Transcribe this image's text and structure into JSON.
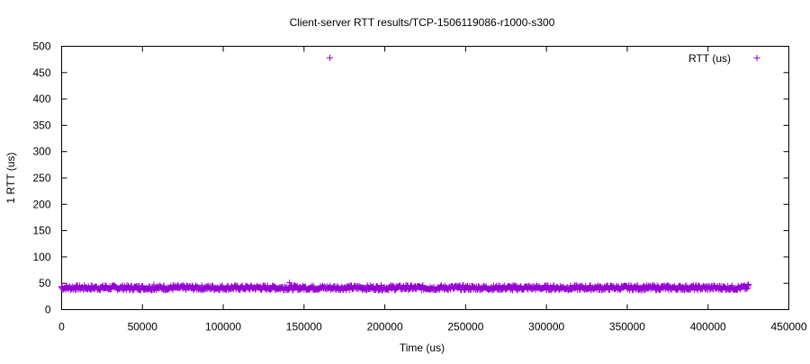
{
  "chart_data": {
    "type": "scatter",
    "title": "Client-server RTT results/TCP-1506119086-r1000-s300",
    "xlabel": "Time (us)",
    "ylabel": "1 RTT (us)",
    "xlim": [
      0,
      450000
    ],
    "ylim": [
      0,
      500
    ],
    "x_ticks": [
      0,
      50000,
      100000,
      150000,
      200000,
      250000,
      300000,
      350000,
      400000,
      450000
    ],
    "y_ticks": [
      0,
      50,
      100,
      150,
      200,
      250,
      300,
      350,
      400,
      450,
      500
    ],
    "grid": false,
    "legend_position": "top-right",
    "marker": "plus",
    "color": "#9400d3",
    "series": [
      {
        "name": "RTT (us)",
        "x_range": [
          0,
          425000
        ],
        "typical_y_range": [
          37,
          46
        ],
        "points": [
          [
            0,
            44
          ],
          [
            3000,
            42
          ],
          [
            6000,
            40
          ],
          [
            9000,
            45
          ],
          [
            12000,
            41
          ],
          [
            15000,
            43
          ],
          [
            18000,
            39
          ],
          [
            21000,
            44
          ],
          [
            24000,
            42
          ],
          [
            27000,
            46
          ],
          [
            30000,
            40
          ],
          [
            33000,
            43
          ],
          [
            36000,
            41
          ],
          [
            39000,
            44
          ],
          [
            42000,
            38
          ],
          [
            45000,
            42
          ],
          [
            48000,
            45
          ],
          [
            51000,
            40
          ],
          [
            54000,
            43
          ],
          [
            57000,
            47
          ],
          [
            60000,
            41
          ],
          [
            63000,
            44
          ],
          [
            66000,
            39
          ],
          [
            69000,
            46
          ],
          [
            72000,
            42
          ],
          [
            75000,
            40
          ],
          [
            78000,
            44
          ],
          [
            81000,
            41
          ],
          [
            84000,
            43
          ],
          [
            87000,
            39
          ],
          [
            90000,
            42
          ],
          [
            93000,
            45
          ],
          [
            96000,
            40
          ],
          [
            99000,
            43
          ],
          [
            102000,
            41
          ],
          [
            105000,
            44
          ],
          [
            108000,
            39
          ],
          [
            111000,
            42
          ],
          [
            114000,
            40
          ],
          [
            117000,
            44
          ],
          [
            120000,
            41
          ],
          [
            123000,
            43
          ],
          [
            126000,
            39
          ],
          [
            129000,
            42
          ],
          [
            132000,
            44
          ],
          [
            135000,
            40
          ],
          [
            138000,
            43
          ],
          [
            141000,
            51
          ],
          [
            144000,
            41
          ],
          [
            147000,
            39
          ],
          [
            150000,
            42
          ],
          [
            153000,
            40
          ],
          [
            156000,
            43
          ],
          [
            159000,
            38
          ],
          [
            162000,
            41
          ],
          [
            166000,
            478
          ],
          [
            168000,
            40
          ],
          [
            171000,
            43
          ],
          [
            174000,
            39
          ],
          [
            177000,
            42
          ],
          [
            180000,
            40
          ],
          [
            183000,
            44
          ],
          [
            186000,
            41
          ],
          [
            189000,
            38
          ],
          [
            192000,
            42
          ],
          [
            195000,
            40
          ],
          [
            198000,
            43
          ],
          [
            201000,
            39
          ],
          [
            204000,
            41
          ],
          [
            207000,
            44
          ],
          [
            210000,
            40
          ],
          [
            213000,
            46
          ],
          [
            216000,
            41
          ],
          [
            219000,
            39
          ],
          [
            222000,
            42
          ],
          [
            225000,
            40
          ],
          [
            228000,
            43
          ],
          [
            231000,
            38
          ],
          [
            234000,
            41
          ],
          [
            237000,
            39
          ],
          [
            240000,
            42
          ],
          [
            243000,
            40
          ],
          [
            246000,
            43
          ],
          [
            249000,
            38
          ],
          [
            252000,
            41
          ],
          [
            255000,
            39
          ],
          [
            258000,
            42
          ],
          [
            261000,
            44
          ],
          [
            264000,
            40
          ],
          [
            267000,
            38
          ],
          [
            270000,
            41
          ],
          [
            273000,
            39
          ],
          [
            276000,
            42
          ],
          [
            279000,
            37
          ],
          [
            282000,
            40
          ],
          [
            285000,
            38
          ],
          [
            288000,
            41
          ],
          [
            291000,
            39
          ],
          [
            294000,
            42
          ],
          [
            297000,
            40
          ],
          [
            300000,
            38
          ],
          [
            303000,
            41
          ],
          [
            306000,
            39
          ],
          [
            309000,
            42
          ],
          [
            312000,
            40
          ],
          [
            315000,
            38
          ],
          [
            318000,
            41
          ],
          [
            321000,
            39
          ],
          [
            324000,
            42
          ],
          [
            327000,
            40
          ],
          [
            330000,
            43
          ],
          [
            333000,
            38
          ],
          [
            336000,
            41
          ],
          [
            339000,
            39
          ],
          [
            342000,
            42
          ],
          [
            345000,
            40
          ],
          [
            348000,
            43
          ],
          [
            351000,
            45
          ],
          [
            354000,
            41
          ],
          [
            357000,
            39
          ],
          [
            360000,
            42
          ],
          [
            363000,
            40
          ],
          [
            366000,
            43
          ],
          [
            369000,
            41
          ],
          [
            372000,
            44
          ],
          [
            375000,
            40
          ],
          [
            378000,
            42
          ],
          [
            381000,
            39
          ],
          [
            384000,
            43
          ],
          [
            387000,
            41
          ],
          [
            390000,
            44
          ],
          [
            393000,
            40
          ],
          [
            396000,
            42
          ],
          [
            399000,
            39
          ],
          [
            402000,
            43
          ],
          [
            405000,
            41
          ],
          [
            408000,
            44
          ],
          [
            411000,
            40
          ],
          [
            414000,
            42
          ],
          [
            417000,
            39
          ],
          [
            420000,
            41
          ],
          [
            423000,
            43
          ],
          [
            425000,
            48
          ]
        ]
      }
    ]
  }
}
